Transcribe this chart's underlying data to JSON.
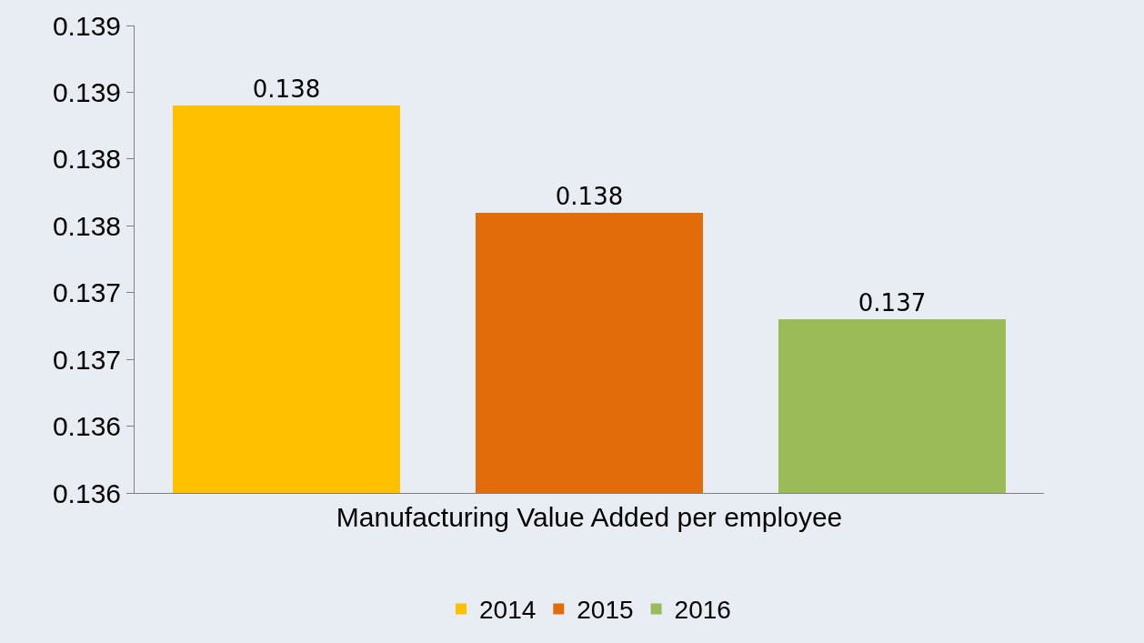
{
  "chart_data": {
    "type": "bar",
    "categories": [
      "Manufacturing Value Added per employee"
    ],
    "series": [
      {
        "name": "2014",
        "color": "#ffc000",
        "values": [
          0.1384
        ],
        "value_labels": [
          "0.138"
        ]
      },
      {
        "name": "2015",
        "color": "#e36c0a",
        "values": [
          0.1376
        ],
        "value_labels": [
          "0.138"
        ]
      },
      {
        "name": "2016",
        "color": "#9bbb59",
        "values": [
          0.1368
        ],
        "value_labels": [
          "0.137"
        ]
      }
    ],
    "ylim": [
      0.1355,
      0.139
    ],
    "yticks": [
      {
        "value": 0.1355,
        "label": "0.136"
      },
      0.136,
      {
        "value": 0.1365,
        "label": "0.137"
      },
      0.137,
      {
        "value": 0.1375,
        "label": "0.138"
      },
      0.138,
      {
        "value": 0.1385,
        "label": "0.139"
      },
      0.139
    ],
    "grid": false,
    "legend": "bottom"
  }
}
